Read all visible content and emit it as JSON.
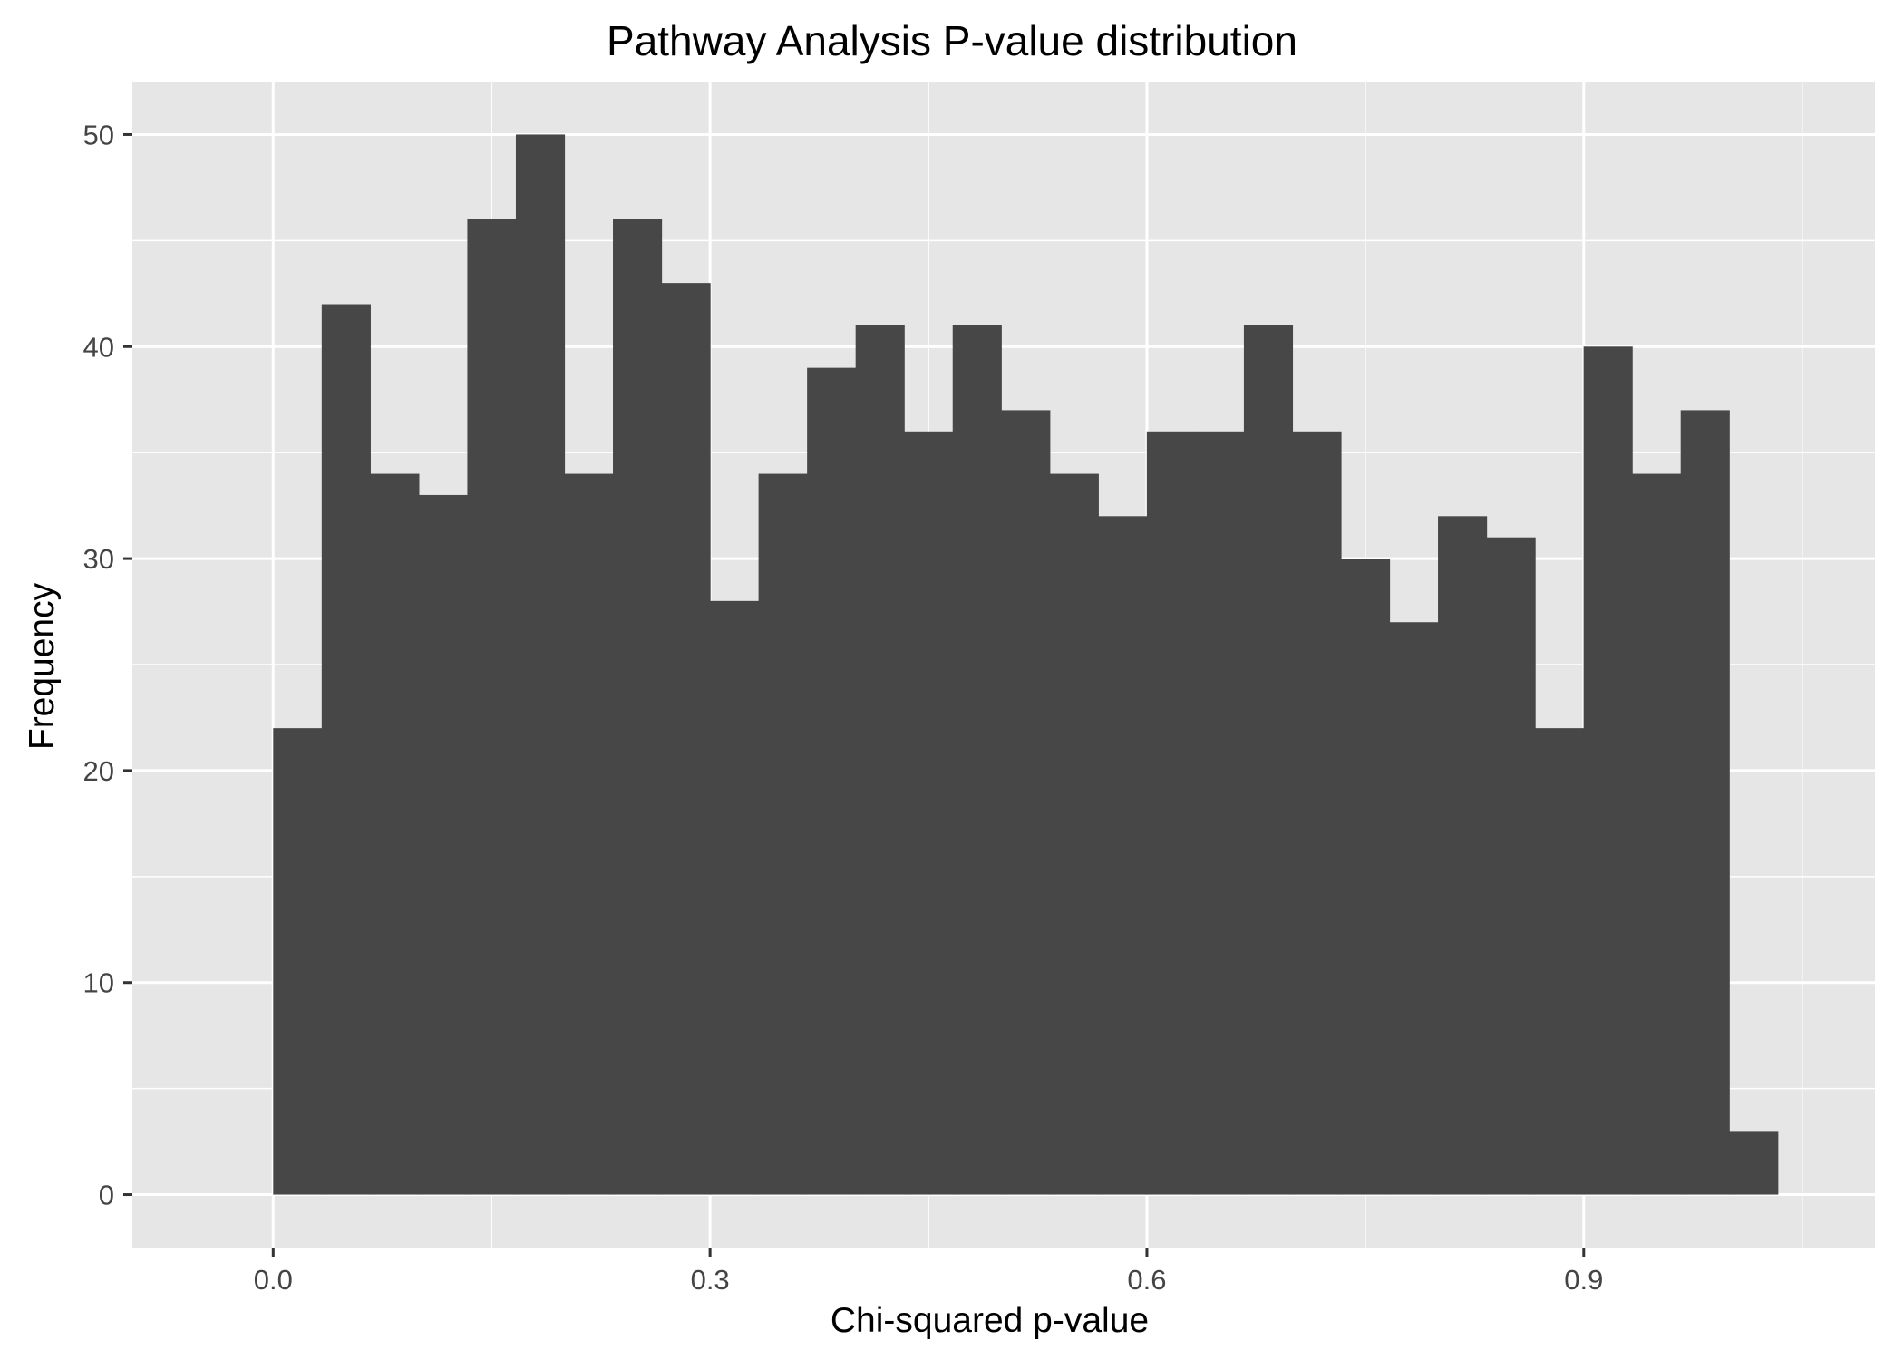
{
  "chart_data": {
    "type": "bar",
    "title": "Pathway Analysis P-value distribution",
    "xlabel": "Chi-squared p-value",
    "ylabel": "Frequency",
    "bin_width": 0.03333,
    "x_start": 0.0,
    "values": [
      22,
      42,
      34,
      33,
      46,
      50,
      34,
      46,
      43,
      28,
      34,
      39,
      41,
      36,
      41,
      37,
      34,
      32,
      36,
      36,
      41,
      36,
      30,
      27,
      32,
      31,
      22,
      40,
      34,
      37,
      3
    ],
    "xlim": [
      -0.0967,
      1.1
    ],
    "ylim": [
      -2.5,
      52.5
    ],
    "x_ticks": [
      0.0,
      0.3,
      0.6,
      0.9
    ],
    "x_tick_labels": [
      "0.0",
      "0.3",
      "0.6",
      "0.9"
    ],
    "x_minor_ticks": [
      0.15,
      0.45,
      0.75,
      1.05
    ],
    "y_ticks": [
      0,
      10,
      20,
      30,
      40,
      50
    ],
    "y_tick_labels": [
      "0",
      "10",
      "20",
      "30",
      "40",
      "50"
    ],
    "y_minor_ticks": [
      5,
      15,
      25,
      35,
      45
    ],
    "grid": true,
    "colors": {
      "bar_fill": "#474747",
      "panel_background": "#e6e6e6",
      "grid_line": "#ffffff",
      "axis_text": "#444444",
      "tick_mark": "#333333"
    }
  }
}
